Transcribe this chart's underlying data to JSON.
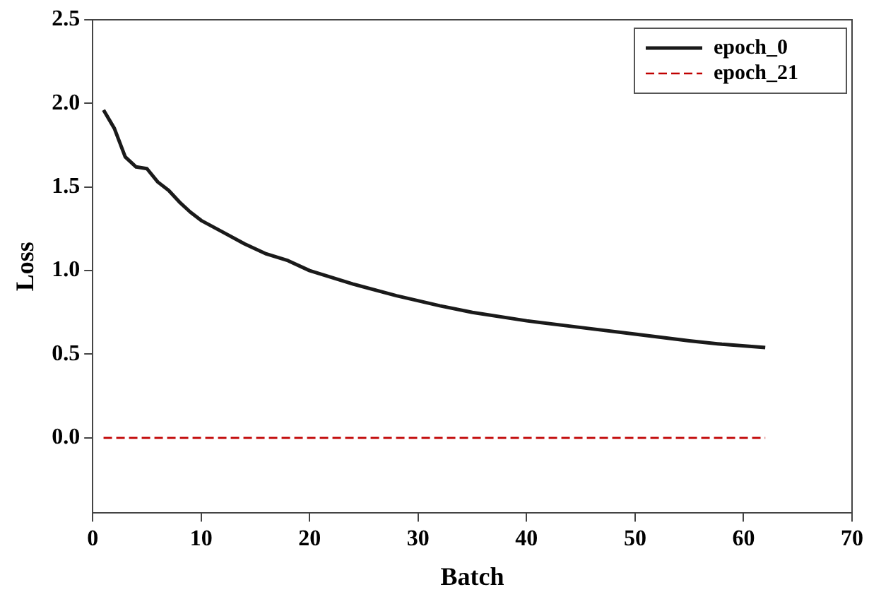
{
  "chart_data": {
    "type": "line",
    "xlabel": "Batch",
    "ylabel": "Loss",
    "xlim": [
      0,
      70
    ],
    "xticks": [
      0,
      10,
      20,
      30,
      40,
      50,
      60,
      70
    ],
    "ylim": [
      -0.45,
      2.5
    ],
    "yticks": [
      {
        "value": 0,
        "label": "0.0"
      },
      {
        "value": 0.5,
        "label": "0.5"
      },
      {
        "value": 1,
        "label": "1.0"
      },
      {
        "value": 1.5,
        "label": "1.5"
      },
      {
        "value": 2,
        "label": "2.0"
      },
      {
        "value": 2.5,
        "label": "2.5"
      }
    ],
    "grid": false,
    "legend": "top right",
    "marker": "none",
    "series": [
      {
        "name": "epoch_0",
        "color": "#1a1a1a",
        "line_style": "solid",
        "x": [
          1,
          2,
          3,
          4,
          5,
          6,
          7,
          8,
          9,
          10,
          12,
          14,
          16,
          18,
          20,
          24,
          28,
          32,
          35,
          40,
          45,
          50,
          55,
          58,
          62
        ],
        "values": [
          1.96,
          1.85,
          1.68,
          1.62,
          1.61,
          1.53,
          1.48,
          1.41,
          1.35,
          1.3,
          1.23,
          1.16,
          1.1,
          1.06,
          1.0,
          0.92,
          0.85,
          0.79,
          0.75,
          0.7,
          0.66,
          0.62,
          0.58,
          0.56,
          0.54
        ]
      },
      {
        "name": "epoch_21",
        "color": "#c00000",
        "line_style": "dashed",
        "x": [
          1,
          10,
          20,
          30,
          40,
          50,
          62
        ],
        "values": [
          0,
          0,
          0,
          0,
          0,
          0,
          0
        ]
      }
    ]
  }
}
